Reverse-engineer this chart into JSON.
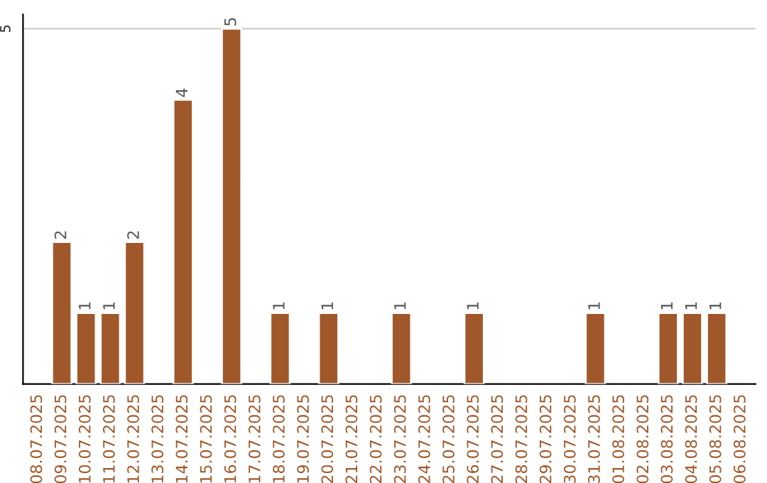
{
  "chart_data": {
    "type": "bar",
    "categories": [
      "08.07.2025",
      "09.07.2025",
      "10.07.2025",
      "11.07.2025",
      "12.07.2025",
      "13.07.2025",
      "14.07.2025",
      "15.07.2025",
      "16.07.2025",
      "17.07.2025",
      "18.07.2025",
      "19.07.2025",
      "20.07.2025",
      "21.07.2025",
      "22.07.2025",
      "23.07.2025",
      "24.07.2025",
      "25.07.2025",
      "26.07.2025",
      "27.07.2025",
      "28.07.2025",
      "29.07.2025",
      "30.07.2025",
      "31.07.2025",
      "01.08.2025",
      "02.08.2025",
      "03.08.2025",
      "04.08.2025",
      "05.08.2025",
      "06.08.2025"
    ],
    "values": [
      null,
      2,
      1,
      1,
      2,
      null,
      4,
      null,
      5,
      null,
      1,
      null,
      1,
      null,
      null,
      1,
      null,
      null,
      1,
      null,
      null,
      null,
      null,
      1,
      null,
      null,
      1,
      1,
      1,
      null
    ],
    "color": "#a0582a",
    "ylim": [
      0,
      5.2
    ],
    "yticks": [
      5
    ],
    "grid": "y",
    "data_labels": true
  }
}
